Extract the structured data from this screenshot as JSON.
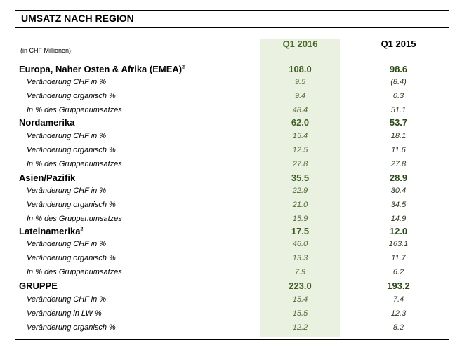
{
  "title": "UMSATZ NACH REGION",
  "unit_note": "(in CHF Millionen)",
  "columns": [
    "Q1 2016",
    "Q1 2015"
  ],
  "rows": [
    {
      "label": "Europa, Naher Osten & Afrika (EMEA)",
      "sup": "2",
      "q1_2016": "108.0",
      "q1_2015": "98.6",
      "heading": true
    },
    {
      "label": "Veränderung CHF in %",
      "q1_2016": "9.5",
      "q1_2015": "(8.4)"
    },
    {
      "label": "Veränderung organisch %",
      "q1_2016": "9.4",
      "q1_2015": "0.3"
    },
    {
      "label": "In % des Gruppenumsatzes",
      "q1_2016": "48.4",
      "q1_2015": "51.1"
    },
    {
      "label": "Nordamerika",
      "q1_2016": "62.0",
      "q1_2015": "53.7",
      "heading": true
    },
    {
      "label": "Veränderung CHF in %",
      "q1_2016": "15.4",
      "q1_2015": "18.1"
    },
    {
      "label": "Veränderung organisch %",
      "q1_2016": "12.5",
      "q1_2015": "11.6"
    },
    {
      "label": "In % des Gruppenumsatzes",
      "q1_2016": "27.8",
      "q1_2015": "27.8"
    },
    {
      "label": "Asien/Pazifik",
      "q1_2016": "35.5",
      "q1_2015": "28.9",
      "heading": true
    },
    {
      "label": "Veränderung CHF in %",
      "q1_2016": "22.9",
      "q1_2015": "30.4"
    },
    {
      "label": "Veränderung organisch %",
      "q1_2016": "21.0",
      "q1_2015": "34.5"
    },
    {
      "label": "In % des Gruppenumsatzes",
      "q1_2016": "15.9",
      "q1_2015": "14.9"
    },
    {
      "label": "Lateinamerika",
      "sup": "2",
      "q1_2016": "17.5",
      "q1_2015": "12.0",
      "heading": true
    },
    {
      "label": "Veränderung CHF in %",
      "q1_2016": "46.0",
      "q1_2015": "163.1"
    },
    {
      "label": "Veränderung organisch %",
      "q1_2016": "13.3",
      "q1_2015": "11.7"
    },
    {
      "label": "In % des Gruppenumsatzes",
      "q1_2016": "7.9",
      "q1_2015": "6.2"
    },
    {
      "label": "GRUPPE",
      "q1_2016": "223.0",
      "q1_2015": "193.2",
      "heading": true
    },
    {
      "label": "Veränderung CHF in %",
      "q1_2016": "15.4",
      "q1_2015": "7.4"
    },
    {
      "label": "Veränderung in LW %",
      "q1_2016": "15.5",
      "q1_2015": "12.3"
    },
    {
      "label": "Veränderung organisch %",
      "q1_2016": "12.2",
      "q1_2015": "8.2"
    }
  ]
}
